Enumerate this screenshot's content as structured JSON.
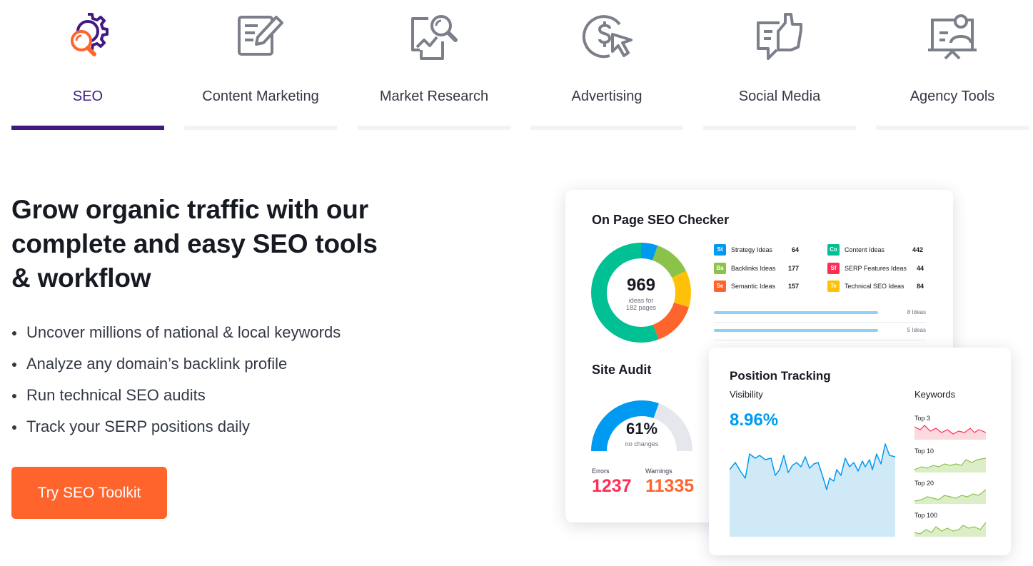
{
  "tabs": [
    {
      "label": "SEO",
      "icon": "seo-gear-search-icon",
      "active": true
    },
    {
      "label": "Content Marketing",
      "icon": "edit-document-icon",
      "active": false
    },
    {
      "label": "Market Research",
      "icon": "research-magnifier-icon",
      "active": false
    },
    {
      "label": "Advertising",
      "icon": "dollar-cursor-icon",
      "active": false
    },
    {
      "label": "Social Media",
      "icon": "thumbs-up-chat-icon",
      "active": false
    },
    {
      "label": "Agency Tools",
      "icon": "presenter-board-icon",
      "active": false
    }
  ],
  "hero": {
    "headline": "Grow organic traffic with our complete and easy SEO tools & workflow",
    "features": [
      "Uncover millions of national & local keywords",
      "Analyze any domain’s backlink profile",
      "Run technical SEO audits",
      "Track your SERP positions daily"
    ],
    "cta": "Try SEO Toolkit"
  },
  "on_page": {
    "title": "On Page SEO Checker",
    "total": "969",
    "total_sub_1": "ideas for",
    "total_sub_2": "182 pages",
    "ideas": [
      {
        "badge": "St",
        "name": "Strategy Ideas",
        "count": "64",
        "color": "#009af0"
      },
      {
        "badge": "Ba",
        "name": "Backlinks Ideas",
        "count": "177",
        "color": "#8bc34a"
      },
      {
        "badge": "Se",
        "name": "Semantic Ideas",
        "count": "157",
        "color": "#ff642d"
      },
      {
        "badge": "Co",
        "name": "Content Ideas",
        "count": "442",
        "color": "#00c094"
      },
      {
        "badge": "Sf",
        "name": "SERP Features Ideas",
        "count": "44",
        "color": "#ff2d55"
      },
      {
        "badge": "Te",
        "name": "Technical SEO Ideas",
        "count": "84",
        "color": "#ffc107"
      }
    ],
    "bars": [
      "8 Ideas",
      "5 Ideas"
    ]
  },
  "site_audit": {
    "title": "Site Audit",
    "value": "61%",
    "sub": "no changes",
    "score_fraction": 0.61,
    "errors_label": "Errors",
    "errors": "1237",
    "warnings_label": "Warnings",
    "warnings": "11335",
    "errors_color": "#ff2d55",
    "warnings_color": "#ff642d"
  },
  "position_tracking": {
    "title": "Position Tracking",
    "visibility_label": "Visibility",
    "visibility": "8.96%",
    "keywords_label": "Keywords",
    "keyword_groups": [
      "Top 3",
      "Top 10",
      "Top 20",
      "Top 100"
    ]
  },
  "colors": {
    "accent": "#421983",
    "cta": "#ff642d",
    "blue": "#009af0",
    "green": "#8bc34a",
    "red": "#ff2d55"
  }
}
